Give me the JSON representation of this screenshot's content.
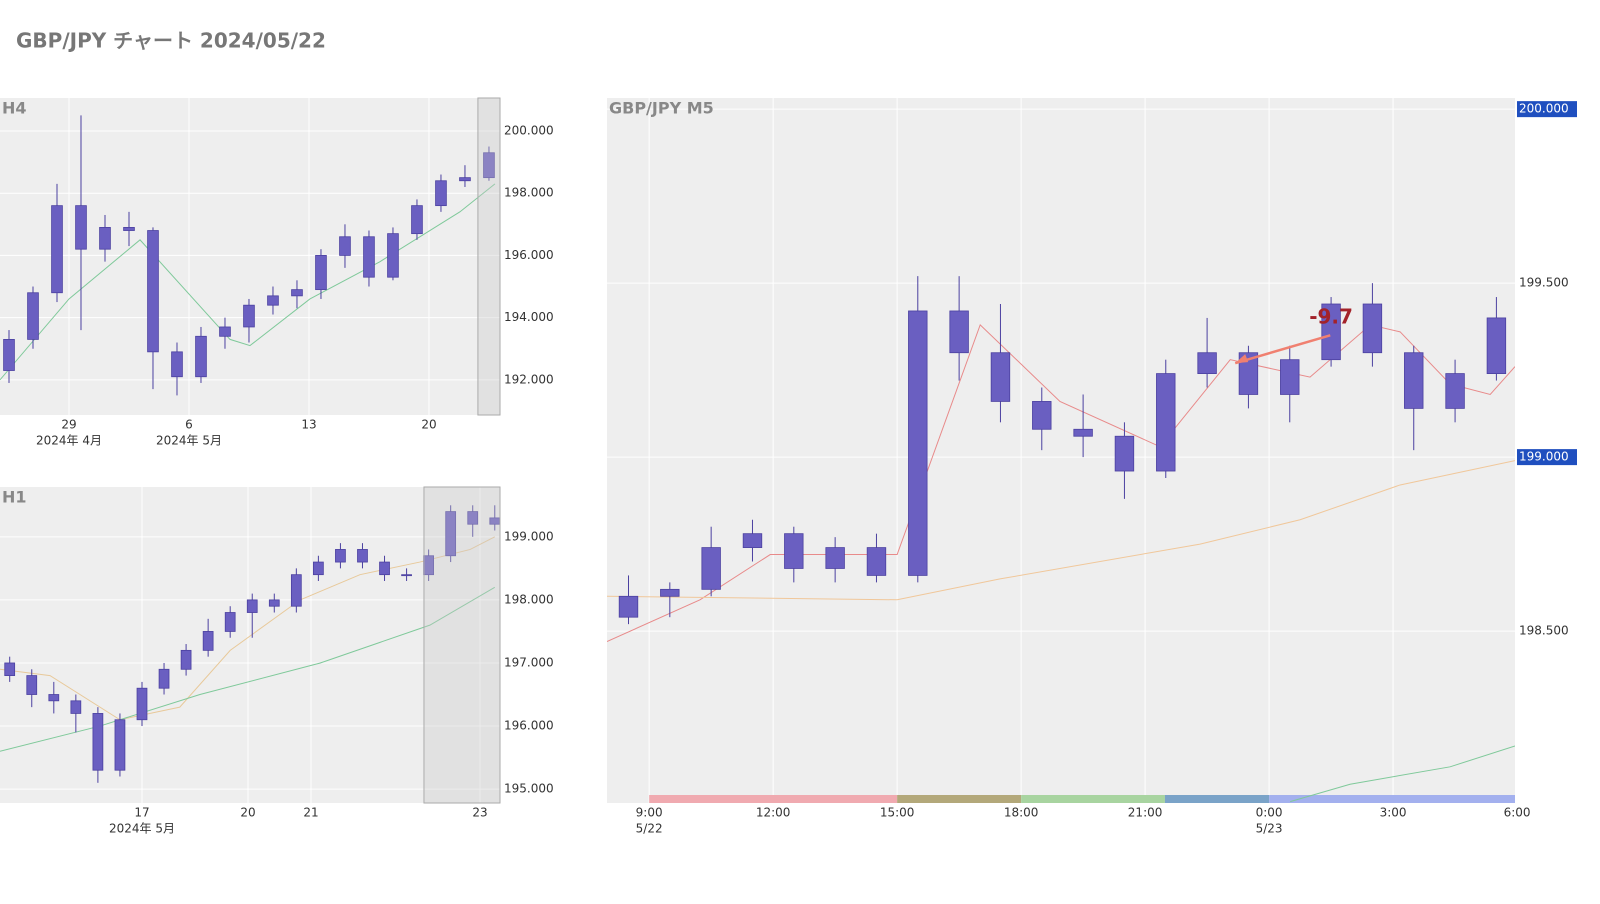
{
  "title": "GBP/JPY チャート 2024/05/22",
  "chart_data": [
    {
      "type": "candlestick",
      "title": "H4",
      "xlim": [
        -2.875,
        17.96
      ],
      "ylim": [
        190.87,
        201.06
      ],
      "xticks": [
        {
          "value": 0,
          "label": "29"
        },
        {
          "value": 5,
          "label": "6"
        },
        {
          "value": 10,
          "label": "13"
        },
        {
          "value": 15,
          "label": "20"
        }
      ],
      "xticks2": [
        {
          "value": 0,
          "label": "2024年 4月"
        },
        {
          "value": 5,
          "label": "2024年 5月"
        }
      ],
      "yticks": [
        {
          "value": 192,
          "label": "192.000"
        },
        {
          "value": 194,
          "label": "194.000"
        },
        {
          "value": 196,
          "label": "196.000"
        },
        {
          "value": 198,
          "label": "198.000"
        },
        {
          "value": 200,
          "label": "200.000"
        }
      ],
      "grid": true,
      "color": "#6a5fc1",
      "highlight_x": [
        17.04,
        17.96
      ],
      "x": [
        -2.5,
        -1.5,
        -0.5,
        0.5,
        1.5,
        2.5,
        3.5,
        4.5,
        5.5,
        6.5,
        7.5,
        8.5,
        9.5,
        10.5,
        11.5,
        12.5,
        13.5,
        14.5,
        15.5,
        16.5,
        17.5
      ],
      "open": [
        192.3,
        193.3,
        194.8,
        197.6,
        196.2,
        196.9,
        196.8,
        192.9,
        192.1,
        193.4,
        193.7,
        194.4,
        194.7,
        194.9,
        196.0,
        196.6,
        195.3,
        196.7,
        197.6,
        198.4,
        198.5
      ],
      "high": [
        193.6,
        195.0,
        198.3,
        200.5,
        197.3,
        197.4,
        196.9,
        193.2,
        193.7,
        194.0,
        194.6,
        195.0,
        195.2,
        196.2,
        197.0,
        196.8,
        196.9,
        197.8,
        198.6,
        198.9,
        199.5
      ],
      "low": [
        191.9,
        193.0,
        194.5,
        193.6,
        195.8,
        196.3,
        191.7,
        191.5,
        191.9,
        193.0,
        193.2,
        194.1,
        194.3,
        194.6,
        195.6,
        195.0,
        195.2,
        196.5,
        197.4,
        198.2,
        198.4
      ],
      "close": [
        193.3,
        194.8,
        197.6,
        196.2,
        196.9,
        196.8,
        192.9,
        192.1,
        193.4,
        193.7,
        194.4,
        194.7,
        194.9,
        196.0,
        196.6,
        195.3,
        196.7,
        197.6,
        198.4,
        198.5,
        199.3
      ],
      "series": [
        {
          "color": "#7fc99a",
          "x": [
            -2.875,
            0,
            2.96,
            6.71,
            7.54,
            10.04,
            12.96,
            16.29,
            17.75
          ],
          "values": [
            192.0,
            194.6,
            196.5,
            193.3,
            193.1,
            194.6,
            195.8,
            197.4,
            198.3
          ]
        }
      ]
    },
    {
      "type": "candlestick",
      "title": "H1",
      "xlim": [
        -2.254,
        5.683
      ],
      "ylim": [
        194.78,
        199.79
      ],
      "xticks": [
        {
          "value": 0,
          "label": "17"
        },
        {
          "value": 1.683,
          "label": "20"
        },
        {
          "value": 2.683,
          "label": "21"
        },
        {
          "value": 5.365,
          "label": "23"
        }
      ],
      "xticks2": [
        {
          "value": 0,
          "label": "2024年 5月"
        }
      ],
      "yticks": [
        {
          "value": 195,
          "label": "195.000"
        },
        {
          "value": 196,
          "label": "196.000"
        },
        {
          "value": 197,
          "label": "197.000"
        },
        {
          "value": 198,
          "label": "198.000"
        },
        {
          "value": 199,
          "label": "199.000"
        }
      ],
      "grid": true,
      "color": "#6a5fc1",
      "highlight_x": [
        4.476,
        5.683
      ],
      "x": [
        -2.1,
        -1.75,
        -1.4,
        -1.05,
        -0.7,
        -0.35,
        0,
        0.35,
        0.7,
        1.05,
        1.4,
        1.75,
        2.1,
        2.45,
        2.8,
        3.15,
        3.5,
        3.85,
        4.2,
        4.55,
        4.9,
        5.25,
        5.6
      ],
      "open": [
        197.0,
        196.8,
        196.5,
        196.4,
        196.2,
        195.3,
        196.1,
        196.6,
        196.9,
        197.2,
        197.5,
        197.8,
        198.0,
        197.9,
        198.4,
        198.6,
        198.8,
        198.6,
        198.4,
        198.4,
        198.7,
        199.4,
        199.2
      ],
      "high": [
        197.1,
        196.9,
        196.7,
        196.5,
        196.3,
        196.2,
        196.7,
        197.0,
        197.3,
        197.7,
        197.9,
        198.1,
        198.1,
        198.5,
        198.7,
        198.9,
        198.9,
        198.7,
        198.5,
        198.8,
        199.5,
        199.5,
        199.5
      ],
      "low": [
        196.7,
        196.3,
        196.2,
        195.9,
        195.1,
        195.2,
        196.0,
        196.5,
        196.8,
        197.1,
        197.4,
        197.4,
        197.8,
        197.8,
        198.3,
        198.5,
        198.5,
        198.3,
        198.3,
        198.3,
        198.6,
        199.0,
        199.1
      ],
      "close": [
        196.8,
        196.5,
        196.4,
        196.2,
        195.3,
        196.1,
        196.6,
        196.9,
        197.2,
        197.5,
        197.8,
        198.0,
        197.9,
        198.4,
        198.6,
        198.8,
        198.6,
        198.4,
        198.4,
        198.7,
        199.4,
        199.2,
        199.3
      ],
      "series": [
        {
          "color": "#e8c99a",
          "x": [
            -2.254,
            -1.46,
            -0.35,
            0.6,
            1.4,
            2.51,
            3.46,
            4.41,
            5.21,
            5.6
          ],
          "values": [
            196.9,
            196.8,
            196.1,
            196.3,
            197.2,
            198.0,
            198.4,
            198.6,
            198.8,
            199.0
          ]
        },
        {
          "color": "#7fc99a",
          "x": [
            -2.254,
            -0.667,
            0.92,
            2.83,
            4.57,
            5.6
          ],
          "values": [
            195.6,
            196.0,
            196.5,
            197.0,
            197.6,
            198.2
          ]
        }
      ]
    },
    {
      "type": "candlestick",
      "title": "GBP/JPY M5",
      "xlim": [
        -1.02,
        20.95
      ],
      "ylim": [
        198.006,
        200.032
      ],
      "xticks": [
        {
          "value": 0,
          "label": "9:00"
        },
        {
          "value": 3,
          "label": "12:00"
        },
        {
          "value": 6,
          "label": "15:00"
        },
        {
          "value": 9,
          "label": "18:00"
        },
        {
          "value": 12,
          "label": "21:00"
        },
        {
          "value": 15,
          "label": "0:00"
        },
        {
          "value": 18,
          "label": "3:00"
        },
        {
          "value": 21,
          "label": "6:00"
        }
      ],
      "xticks2": [
        {
          "value": 0,
          "label": "5/22"
        },
        {
          "value": 15,
          "label": "5/23"
        }
      ],
      "yticks": [
        {
          "value": 198.5,
          "label": "198.500"
        },
        {
          "value": 199,
          "label": "199.000"
        },
        {
          "value": 199.5,
          "label": "199.500"
        },
        {
          "value": 200,
          "label": "200.000"
        }
      ],
      "badge_ticks": [
        200,
        199
      ],
      "badge_color": "#1f4fbf",
      "grid": true,
      "color": "#6a5fc1",
      "sessions": [
        {
          "x": [
            0,
            6
          ],
          "color": "#f0aab0"
        },
        {
          "x": [
            6,
            9
          ],
          "color": "#b3a87a"
        },
        {
          "x": [
            9,
            12.48
          ],
          "color": "#a8d4a0"
        },
        {
          "x": [
            12.48,
            15
          ],
          "color": "#7aa3c8"
        },
        {
          "x": [
            15,
            20.95
          ],
          "color": "#a3b0ee"
        }
      ],
      "x": [
        -0.5,
        0.5,
        1.5,
        2.5,
        3.5,
        4.5,
        5.5,
        6.5,
        7.5,
        8.5,
        9.5,
        10.5,
        11.5,
        12.5,
        13.5,
        14.5,
        15.5,
        16.5,
        17.5,
        18.5,
        19.5,
        20.5
      ],
      "open": [
        198.54,
        198.6,
        198.62,
        198.74,
        198.78,
        198.68,
        198.74,
        198.66,
        199.42,
        199.3,
        199.16,
        199.08,
        199.06,
        198.96,
        199.24,
        199.3,
        199.18,
        199.28,
        199.44,
        199.3,
        199.14,
        199.24
      ],
      "high": [
        198.66,
        198.64,
        198.8,
        198.82,
        198.8,
        198.77,
        198.78,
        199.52,
        199.52,
        199.44,
        199.2,
        199.18,
        199.1,
        199.28,
        199.4,
        199.32,
        199.32,
        199.46,
        199.5,
        199.32,
        199.28,
        199.46
      ],
      "low": [
        198.52,
        198.54,
        198.6,
        198.7,
        198.64,
        198.64,
        198.64,
        198.64,
        199.22,
        199.1,
        199.02,
        199.0,
        198.88,
        198.94,
        199.2,
        199.14,
        199.1,
        199.26,
        199.26,
        199.02,
        199.1,
        199.22
      ],
      "close": [
        198.6,
        198.62,
        198.74,
        198.78,
        198.68,
        198.74,
        198.66,
        199.42,
        199.3,
        199.16,
        199.08,
        199.06,
        198.96,
        199.24,
        199.3,
        199.18,
        199.28,
        199.44,
        199.3,
        199.14,
        199.24,
        199.4
      ],
      "series": [
        {
          "color": "#e88a8a",
          "x": [
            -1.02,
            1.23,
            2.93,
            6.0,
            8.01,
            9.94,
            12.36,
            14.06,
            15.99,
            17.45,
            18.17,
            19.38,
            20.35,
            20.95
          ],
          "values": [
            198.47,
            198.59,
            198.72,
            198.72,
            199.38,
            199.16,
            199.03,
            199.28,
            199.23,
            199.38,
            199.36,
            199.21,
            199.18,
            199.26
          ]
        },
        {
          "color": "#f0c79a",
          "x": [
            -1.02,
            6.0,
            8.49,
            13.33,
            15.75,
            18.17,
            20.95
          ],
          "values": [
            198.6,
            198.59,
            198.65,
            198.75,
            198.82,
            198.92,
            198.99
          ]
        },
        {
          "color": "#7fc99a",
          "x": [
            15.51,
            16.96,
            19.38,
            20.95
          ],
          "values": [
            198.01,
            198.06,
            198.11,
            198.17
          ]
        }
      ],
      "annotations": [
        {
          "text": "-9.7",
          "x": 16.5,
          "y": 199.4,
          "arrow_from": [
            16.48,
            199.35
          ],
          "arrow_to": [
            14.18,
            199.27
          ],
          "color": "#a3222a",
          "arrow_color": "#f08070"
        }
      ]
    }
  ]
}
